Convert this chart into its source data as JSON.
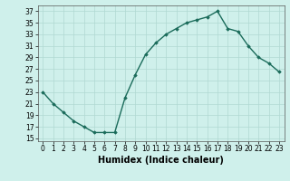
{
  "x": [
    0,
    1,
    2,
    3,
    4,
    5,
    6,
    7,
    8,
    9,
    10,
    11,
    12,
    13,
    14,
    15,
    16,
    17,
    18,
    19,
    20,
    21,
    22,
    23
  ],
  "y": [
    23,
    21,
    19.5,
    18,
    17,
    16,
    16,
    16,
    22,
    26,
    29.5,
    31.5,
    33,
    34,
    35,
    35.5,
    36,
    37,
    34,
    33.5,
    31,
    29,
    28,
    26.5
  ],
  "line_color": "#1a6b5a",
  "marker": "D",
  "marker_size": 1.8,
  "linewidth": 1.0,
  "xlabel": "Humidex (Indice chaleur)",
  "xlim": [
    -0.5,
    23.5
  ],
  "ylim": [
    14.5,
    38
  ],
  "yticks": [
    15,
    17,
    19,
    21,
    23,
    25,
    27,
    29,
    31,
    33,
    35,
    37
  ],
  "xticks": [
    0,
    1,
    2,
    3,
    4,
    5,
    6,
    7,
    8,
    9,
    10,
    11,
    12,
    13,
    14,
    15,
    16,
    17,
    18,
    19,
    20,
    21,
    22,
    23
  ],
  "xtick_labels": [
    "0",
    "1",
    "2",
    "3",
    "4",
    "5",
    "6",
    "7",
    "8",
    "9",
    "10",
    "11",
    "12",
    "13",
    "14",
    "15",
    "16",
    "17",
    "18",
    "19",
    "20",
    "21",
    "22",
    "23"
  ],
  "bg_color": "#cff0eb",
  "grid_color": "#b0d8d2",
  "tick_fontsize": 5.5,
  "xlabel_fontsize": 7.0
}
